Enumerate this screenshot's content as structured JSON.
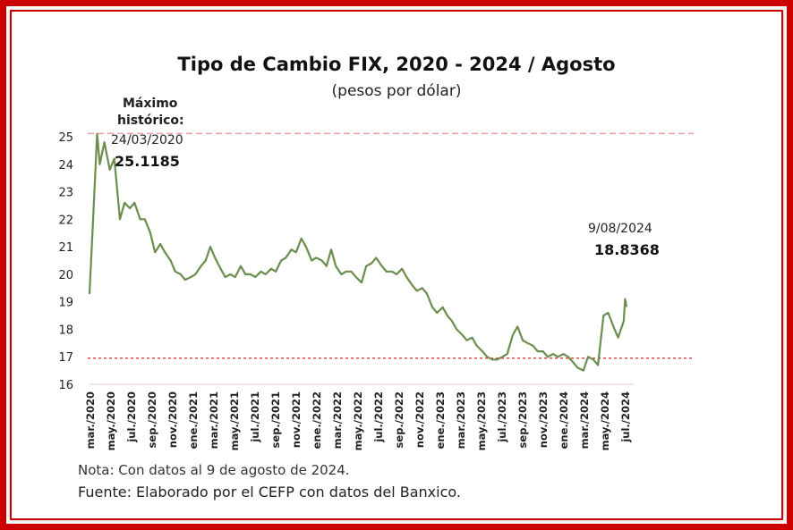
{
  "chart_data": {
    "type": "line",
    "title": "Tipo de Cambio FIX, 2020 - 2024 / Agosto",
    "subtitle": "(pesos por dólar)",
    "ylim": [
      16,
      25
    ],
    "yticks": [
      16,
      17,
      18,
      19,
      20,
      21,
      22,
      23,
      24,
      25
    ],
    "x_labels": [
      "mar./2020",
      "may./2020",
      "jul./2020",
      "sep./2020",
      "nov./2020",
      "ene./2021",
      "mar./2021",
      "may./2021",
      "jul./2021",
      "sep./2021",
      "nov./2021",
      "ene./2022",
      "mar./2022",
      "may./2022",
      "jul./2022",
      "sep./2022",
      "nov./2022",
      "ene./2023",
      "mar./2023",
      "may./2023",
      "jul./2023",
      "sep./2023",
      "nov./2023",
      "ene./2024",
      "mar./2024",
      "may./2024",
      "jul./2024"
    ],
    "series": [
      {
        "color": "#6b8e4e",
        "x": [
          "2020-03-01",
          "2020-03-10",
          "2020-03-24",
          "2020-04-01",
          "2020-04-15",
          "2020-05-01",
          "2020-05-15",
          "2020-06-01",
          "2020-06-15",
          "2020-07-01",
          "2020-07-15",
          "2020-08-01",
          "2020-08-15",
          "2020-09-01",
          "2020-09-15",
          "2020-10-01",
          "2020-10-15",
          "2020-11-01",
          "2020-11-15",
          "2020-12-01",
          "2020-12-15",
          "2021-01-01",
          "2021-01-15",
          "2021-02-01",
          "2021-02-15",
          "2021-03-01",
          "2021-03-15",
          "2021-04-01",
          "2021-04-15",
          "2021-05-01",
          "2021-05-15",
          "2021-06-01",
          "2021-06-15",
          "2021-07-01",
          "2021-07-15",
          "2021-08-01",
          "2021-08-15",
          "2021-09-01",
          "2021-09-15",
          "2021-10-01",
          "2021-10-15",
          "2021-11-01",
          "2021-11-15",
          "2021-12-01",
          "2021-12-15",
          "2022-01-01",
          "2022-01-15",
          "2022-02-01",
          "2022-02-15",
          "2022-03-01",
          "2022-03-15",
          "2022-04-01",
          "2022-04-15",
          "2022-05-01",
          "2022-05-15",
          "2022-06-01",
          "2022-06-15",
          "2022-07-01",
          "2022-07-15",
          "2022-08-01",
          "2022-08-15",
          "2022-09-01",
          "2022-09-15",
          "2022-10-01",
          "2022-10-15",
          "2022-11-01",
          "2022-11-15",
          "2022-12-01",
          "2022-12-15",
          "2023-01-01",
          "2023-01-15",
          "2023-02-01",
          "2023-02-15",
          "2023-03-01",
          "2023-03-15",
          "2023-04-01",
          "2023-04-15",
          "2023-05-01",
          "2023-05-15",
          "2023-06-01",
          "2023-06-15",
          "2023-07-01",
          "2023-07-15",
          "2023-08-01",
          "2023-08-15",
          "2023-09-01",
          "2023-09-15",
          "2023-10-01",
          "2023-10-15",
          "2023-11-01",
          "2023-11-15",
          "2023-12-01",
          "2023-12-15",
          "2024-01-01",
          "2024-01-15",
          "2024-02-01",
          "2024-02-15",
          "2024-03-01",
          "2024-03-15",
          "2024-04-01",
          "2024-04-15",
          "2024-05-01",
          "2024-05-15",
          "2024-06-01",
          "2024-06-15",
          "2024-07-01",
          "2024-07-15",
          "2024-08-01",
          "2024-08-05",
          "2024-08-09"
        ],
        "y": [
          19.3,
          21.5,
          25.1,
          24.0,
          24.8,
          23.8,
          24.2,
          22.0,
          22.6,
          22.4,
          22.6,
          22.0,
          22.0,
          21.5,
          20.8,
          21.1,
          20.8,
          20.5,
          20.1,
          20.0,
          19.8,
          19.9,
          20.0,
          20.3,
          20.5,
          21.0,
          20.6,
          20.2,
          19.9,
          20.0,
          19.9,
          20.3,
          20.0,
          20.0,
          19.9,
          20.1,
          20.0,
          20.2,
          20.1,
          20.5,
          20.6,
          20.9,
          20.8,
          21.3,
          21.0,
          20.5,
          20.6,
          20.5,
          20.3,
          20.9,
          20.3,
          20.0,
          20.1,
          20.1,
          19.9,
          19.7,
          20.3,
          20.4,
          20.6,
          20.3,
          20.1,
          20.1,
          20.0,
          20.2,
          19.9,
          19.6,
          19.4,
          19.5,
          19.3,
          18.8,
          18.6,
          18.8,
          18.5,
          18.3,
          18.0,
          17.8,
          17.6,
          17.7,
          17.4,
          17.2,
          17.0,
          16.9,
          16.9,
          17.0,
          17.1,
          17.8,
          18.1,
          17.6,
          17.5,
          17.4,
          17.2,
          17.2,
          17.0,
          17.1,
          17.0,
          17.1,
          17.0,
          16.8,
          16.6,
          16.5,
          17.0,
          16.9,
          16.7,
          18.5,
          18.6,
          18.1,
          17.7,
          18.3,
          19.1,
          18.8368
        ],
        "max_point": {
          "x": "2020-03-24",
          "y": 25.1185
        },
        "last_point": {
          "x": "2024-08-09",
          "y": 18.8368
        }
      }
    ],
    "reference_lines": [
      {
        "y": 25.1185,
        "color": "#e8a0a0",
        "style": "dashed"
      },
      {
        "y": 16.95,
        "color": "#dd2222",
        "style": "dotted"
      }
    ],
    "grid": {
      "horizontal_baseline": true
    }
  },
  "annotations": {
    "max_label_line1": "Máximo",
    "max_label_line2": "histórico:",
    "max_date": "24/03/2020",
    "max_value": "25.1185",
    "last_date": "9/08/2024",
    "last_value": "18.8368"
  },
  "footer": {
    "note": "Nota: Con datos al 9 de agosto de 2024.",
    "source": "Fuente: Elaborado por el CEFP con datos del Banxico."
  },
  "colors": {
    "frame": "#cc0000",
    "line": "#6b8e4e"
  }
}
